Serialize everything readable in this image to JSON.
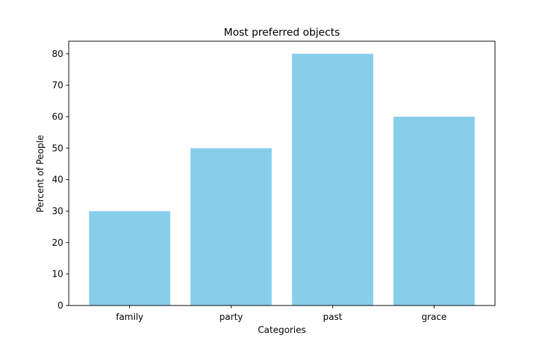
{
  "chart_data": {
    "type": "bar",
    "title": "Most preferred objects",
    "xlabel": "Categories",
    "ylabel": "Percent of People",
    "categories": [
      "family",
      "party",
      "past",
      "grace"
    ],
    "values": [
      30,
      50,
      80,
      60
    ],
    "ylim": [
      0,
      84
    ],
    "yticks": [
      0,
      10,
      20,
      30,
      40,
      50,
      60,
      70,
      80
    ],
    "bar_color": "#87CEEB",
    "grid": false,
    "legend": "none"
  }
}
